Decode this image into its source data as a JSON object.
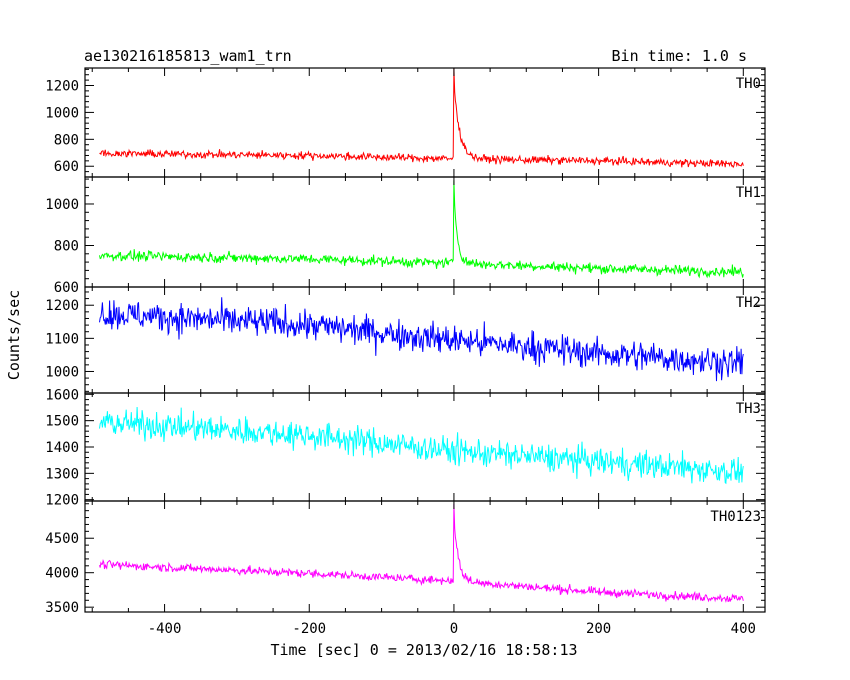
{
  "header": {
    "title": "ae130216185813_wam1_trn",
    "bin_time": "Bin time: 1.0 s"
  },
  "chart_data": {
    "type": "line",
    "title": "ae130216185813_wam1_trn",
    "subtitle": "Bin time: 1.0 s",
    "xlabel": "Time [sec] 0 = 2013/02/16 18:58:13",
    "ylabel": "Counts/sec",
    "xlim": [
      -510,
      430
    ],
    "xticks": [
      -400,
      -200,
      0,
      200,
      400
    ],
    "grid": false,
    "panels": [
      {
        "name": "TH0",
        "color": "#ff0000",
        "ylim": [
          520,
          1330
        ],
        "yticks": [
          600,
          800,
          1000,
          1200
        ],
        "trend": [
          [
            -490,
            695
          ],
          [
            -200,
            680
          ],
          [
            0,
            655
          ],
          [
            200,
            640
          ],
          [
            400,
            615
          ]
        ],
        "noise": 26,
        "peak": {
          "time": 0,
          "value": 1320,
          "decay": 8
        },
        "series": [
          {
            "name": "TH0",
            "x": [
              -490,
              -200,
              0,
              200,
              400
            ],
            "values": [
              695,
              680,
              1320,
              640,
              615
            ]
          }
        ]
      },
      {
        "name": "TH1",
        "color": "#00ff00",
        "ylim": [
          600,
          1130
        ],
        "yticks": [
          600,
          800,
          1000
        ],
        "trend": [
          [
            -490,
            752
          ],
          [
            -200,
            735
          ],
          [
            0,
            715
          ],
          [
            200,
            690
          ],
          [
            400,
            672
          ]
        ],
        "noise": 22,
        "peak": {
          "time": 0,
          "value": 1120,
          "decay": 5
        },
        "series": [
          {
            "name": "TH1",
            "x": [
              -490,
              -200,
              0,
              200,
              400
            ],
            "values": [
              752,
              735,
              1120,
              690,
              672
            ]
          }
        ]
      },
      {
        "name": "TH2",
        "color": "#0000ff",
        "ylim": [
          935,
          1255
        ],
        "yticks": [
          1000,
          1100,
          1200
        ],
        "trend": [
          [
            -490,
            1175
          ],
          [
            -200,
            1140
          ],
          [
            0,
            1095
          ],
          [
            200,
            1055
          ],
          [
            400,
            1025
          ]
        ],
        "noise": 42,
        "peak": null,
        "series": [
          {
            "name": "TH2",
            "x": [
              -490,
              -200,
              0,
              200,
              400
            ],
            "values": [
              1175,
              1140,
              1095,
              1055,
              1025
            ]
          }
        ]
      },
      {
        "name": "TH3",
        "color": "#00ffff",
        "ylim": [
          1195,
          1605
        ],
        "yticks": [
          1200,
          1300,
          1400,
          1500,
          1600
        ],
        "trend": [
          [
            -490,
            1495
          ],
          [
            -200,
            1445
          ],
          [
            0,
            1385
          ],
          [
            200,
            1345
          ],
          [
            400,
            1305
          ]
        ],
        "noise": 48,
        "peak": null,
        "series": [
          {
            "name": "TH3",
            "x": [
              -490,
              -200,
              0,
              200,
              400
            ],
            "values": [
              1495,
              1445,
              1385,
              1345,
              1305
            ]
          }
        ]
      },
      {
        "name": "TH0123",
        "color": "#ff00ff",
        "ylim": [
          3430,
          5040
        ],
        "yticks": [
          3500,
          4000,
          4500
        ],
        "trend": [
          [
            -490,
            4120
          ],
          [
            -200,
            3990
          ],
          [
            0,
            3880
          ],
          [
            200,
            3720
          ],
          [
            400,
            3620
          ]
        ],
        "noise": 55,
        "peak": {
          "time": 0,
          "value": 5000,
          "decay": 6
        },
        "series": [
          {
            "name": "TH0123",
            "x": [
              -490,
              -200,
              0,
              200,
              400
            ],
            "values": [
              4120,
              3990,
              5000,
              3720,
              3620
            ]
          }
        ]
      }
    ]
  }
}
